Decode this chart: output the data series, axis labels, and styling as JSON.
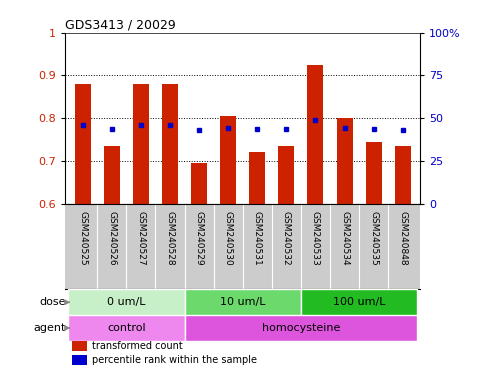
{
  "title": "GDS3413 / 20029",
  "samples": [
    "GSM240525",
    "GSM240526",
    "GSM240527",
    "GSM240528",
    "GSM240529",
    "GSM240530",
    "GSM240531",
    "GSM240532",
    "GSM240533",
    "GSM240534",
    "GSM240535",
    "GSM240848"
  ],
  "red_values": [
    0.88,
    0.735,
    0.88,
    0.88,
    0.695,
    0.805,
    0.72,
    0.735,
    0.925,
    0.8,
    0.745,
    0.735
  ],
  "blue_values": [
    0.785,
    0.775,
    0.785,
    0.785,
    0.773,
    0.778,
    0.775,
    0.775,
    0.795,
    0.778,
    0.775,
    0.773
  ],
  "ylim_left": [
    0.6,
    1.0
  ],
  "ylim_right": [
    0,
    100
  ],
  "yticks_left": [
    0.6,
    0.7,
    0.8,
    0.9,
    1.0
  ],
  "ytick_labels_left": [
    "0.6",
    "0.7",
    "0.8",
    "0.9",
    "1"
  ],
  "yticks_right": [
    0,
    25,
    50,
    75,
    100
  ],
  "ytick_labels_right": [
    "0",
    "25",
    "50",
    "75",
    "100%"
  ],
  "dose_groups": [
    {
      "label": "0 um/L",
      "start": 0,
      "end": 4,
      "color": "#c8f0c8"
    },
    {
      "label": "10 um/L",
      "start": 4,
      "end": 8,
      "color": "#6cd96c"
    },
    {
      "label": "100 um/L",
      "start": 8,
      "end": 12,
      "color": "#22bb22"
    }
  ],
  "agent_groups": [
    {
      "label": "control",
      "start": 0,
      "end": 4,
      "color": "#ee88ee"
    },
    {
      "label": "homocysteine",
      "start": 4,
      "end": 12,
      "color": "#dd55dd"
    }
  ],
  "bar_color": "#cc2200",
  "dot_color": "#0000cc",
  "background_color": "#ffffff",
  "label_bg_color": "#cccccc",
  "axis_color_left": "#cc2200",
  "axis_color_right": "#0000cc",
  "bar_width": 0.55,
  "legend_items": [
    {
      "label": "transformed count",
      "color": "#cc2200"
    },
    {
      "label": "percentile rank within the sample",
      "color": "#0000cc"
    }
  ],
  "grid_yticks": [
    0.7,
    0.8,
    0.9
  ]
}
